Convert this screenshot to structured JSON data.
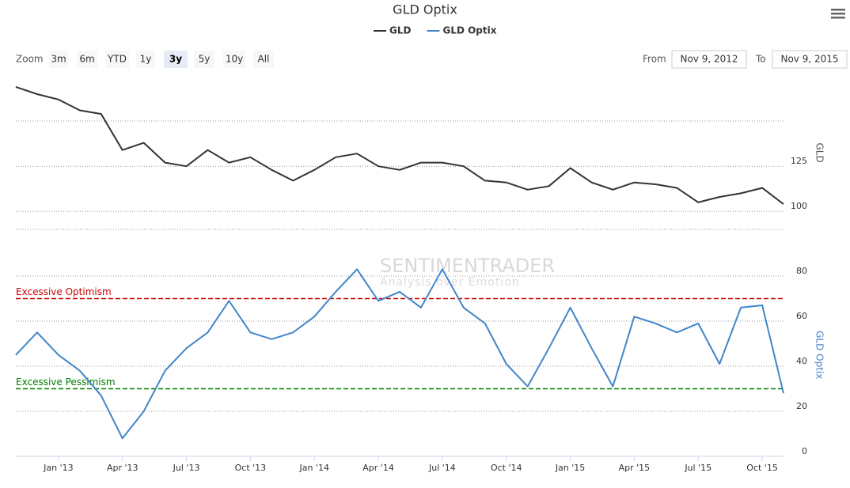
{
  "title": "GLD Optix",
  "range_selector": {
    "label": "Zoom",
    "buttons": [
      "3m",
      "6m",
      "YTD",
      "1y",
      "3y",
      "5y",
      "10y",
      "All"
    ],
    "selected": 4
  },
  "date_range": {
    "from_label": "From",
    "from": "Nov 9, 2012",
    "to_label": "To",
    "to": "Nov 9, 2015"
  },
  "watermark": {
    "name": "SENTIMENTRADER",
    "tagline": "Analysis over Emotion"
  },
  "chart_data": [
    {
      "type": "line",
      "x": [
        "2012-11",
        "2012-12",
        "2013-01",
        "2013-02",
        "2013-03",
        "2013-04",
        "2013-05",
        "2013-06",
        "2013-07",
        "2013-08",
        "2013-09",
        "2013-10",
        "2013-11",
        "2013-12",
        "2014-01",
        "2014-02",
        "2014-03",
        "2014-04",
        "2014-05",
        "2014-06",
        "2014-07",
        "2014-08",
        "2014-09",
        "2014-10",
        "2014-11",
        "2014-12",
        "2015-01",
        "2015-02",
        "2015-03",
        "2015-04",
        "2015-05",
        "2015-06",
        "2015-07",
        "2015-08",
        "2015-09",
        "2015-10",
        "2015-11"
      ],
      "series": [
        {
          "name": "GLD",
          "color": "#333333",
          "values": [
            169,
            165,
            162,
            156,
            154,
            134,
            138,
            127,
            125,
            134,
            127,
            130,
            123,
            117,
            123,
            130,
            132,
            125,
            123,
            127,
            127,
            125,
            117,
            116,
            112,
            114,
            124,
            116,
            112,
            116,
            115,
            113,
            105,
            108,
            110,
            113,
            104
          ]
        }
      ],
      "y_label": "GLD",
      "xlim": [
        "2012-11",
        "2015-11"
      ],
      "ylim": [
        90,
        175
      ],
      "yticks": [
        100,
        125
      ],
      "grid": true
    },
    {
      "type": "line",
      "x": [
        "2012-11",
        "2012-12",
        "2013-01",
        "2013-02",
        "2013-03",
        "2013-04",
        "2013-05",
        "2013-06",
        "2013-07",
        "2013-08",
        "2013-09",
        "2013-10",
        "2013-11",
        "2013-12",
        "2014-01",
        "2014-02",
        "2014-03",
        "2014-04",
        "2014-05",
        "2014-06",
        "2014-07",
        "2014-08",
        "2014-09",
        "2014-10",
        "2014-11",
        "2014-12",
        "2015-01",
        "2015-02",
        "2015-03",
        "2015-04",
        "2015-05",
        "2015-06",
        "2015-07",
        "2015-08",
        "2015-09",
        "2015-10",
        "2015-11"
      ],
      "series": [
        {
          "name": "GLD Optix",
          "color": "#4286c8",
          "values": [
            45,
            55,
            45,
            38,
            27,
            8,
            20,
            38,
            48,
            55,
            69,
            55,
            52,
            55,
            62,
            73,
            83,
            69,
            73,
            66,
            83,
            66,
            59,
            41,
            31,
            48,
            66,
            48,
            31,
            62,
            59,
            55,
            59,
            41,
            66,
            67,
            28
          ]
        }
      ],
      "y_label": "GLD Optix",
      "xlim": [
        "2012-11",
        "2015-11"
      ],
      "xticks": [
        {
          "value": "2013-01",
          "label": "Jan '13"
        },
        {
          "value": "2013-04",
          "label": "Apr '13"
        },
        {
          "value": "2013-07",
          "label": "Jul '13"
        },
        {
          "value": "2013-10",
          "label": "Oct '13"
        },
        {
          "value": "2014-01",
          "label": "Jan '14"
        },
        {
          "value": "2014-04",
          "label": "Apr '14"
        },
        {
          "value": "2014-07",
          "label": "Jul '14"
        },
        {
          "value": "2014-10",
          "label": "Oct '14"
        },
        {
          "value": "2015-01",
          "label": "Jan '15"
        },
        {
          "value": "2015-04",
          "label": "Apr '15"
        },
        {
          "value": "2015-07",
          "label": "Jul '15"
        },
        {
          "value": "2015-10",
          "label": "Oct '15"
        }
      ],
      "ylim": [
        0,
        90
      ],
      "yticks": [
        0,
        20,
        40,
        60,
        80
      ],
      "grid": true,
      "reference_lines": [
        {
          "label": "Excessive Optimism",
          "value": 70,
          "color": "#cc0000"
        },
        {
          "label": "Excessive Pessimism",
          "value": 30,
          "color": "#008000"
        }
      ]
    }
  ]
}
